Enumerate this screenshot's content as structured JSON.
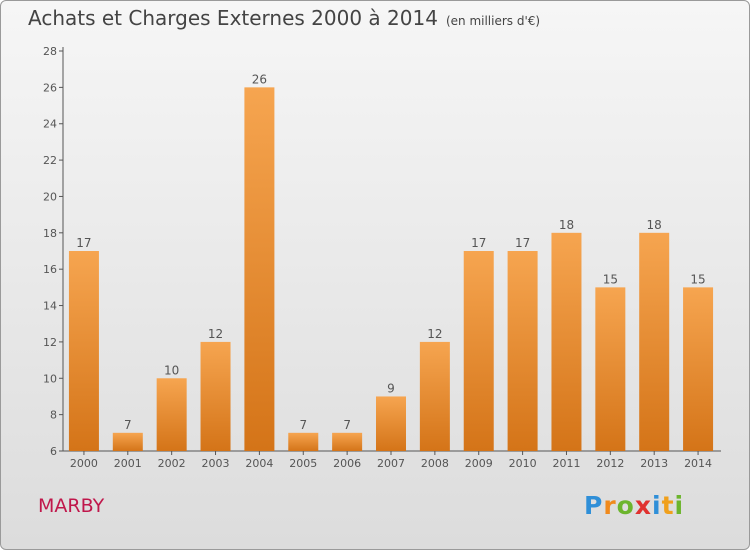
{
  "title": "Achats et Charges Externes 2000 à 2014",
  "subtitle": "(en milliers d'€)",
  "place": "MARBY",
  "logo": {
    "text": "Proxiti",
    "letter_colors": [
      "#2f8fd8",
      "#f08a1c",
      "#6cb52d",
      "#e0312f",
      "#2f8fd8",
      "#f0a01c",
      "#6cb52d"
    ]
  },
  "colors": {
    "bar_top": "#f6a550",
    "bar_bottom": "#d47418",
    "axis": "#555555",
    "place": "#c0174b"
  },
  "chart_data": {
    "type": "bar",
    "title": "Achats et Charges Externes 2000 à 2014",
    "subtitle": "(en milliers d'€)",
    "xlabel": "",
    "ylabel": "",
    "ylim": [
      6,
      28
    ],
    "yticks": [
      6,
      8,
      10,
      12,
      14,
      16,
      18,
      20,
      22,
      24,
      26,
      28
    ],
    "grid": false,
    "categories": [
      "2000",
      "2001",
      "2002",
      "2003",
      "2004",
      "2005",
      "2006",
      "2007",
      "2008",
      "2009",
      "2010",
      "2011",
      "2012",
      "2013",
      "2014"
    ],
    "values": [
      17,
      7,
      10,
      12,
      26,
      7,
      7,
      9,
      12,
      17,
      17,
      18,
      15,
      18,
      15
    ]
  }
}
